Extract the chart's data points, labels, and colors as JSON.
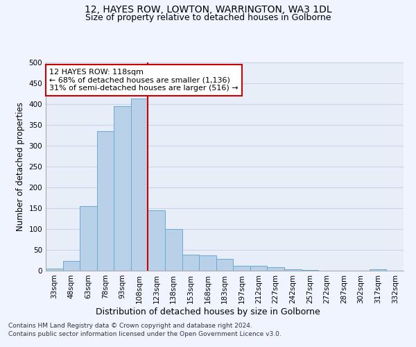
{
  "title": "12, HAYES ROW, LOWTON, WARRINGTON, WA3 1DL",
  "subtitle": "Size of property relative to detached houses in Golborne",
  "xlabel": "Distribution of detached houses by size in Golborne",
  "ylabel": "Number of detached properties",
  "categories": [
    "33sqm",
    "48sqm",
    "63sqm",
    "78sqm",
    "93sqm",
    "108sqm",
    "123sqm",
    "138sqm",
    "153sqm",
    "168sqm",
    "183sqm",
    "197sqm",
    "212sqm",
    "227sqm",
    "242sqm",
    "257sqm",
    "272sqm",
    "287sqm",
    "302sqm",
    "317sqm",
    "332sqm"
  ],
  "values": [
    5,
    23,
    155,
    335,
    395,
    413,
    145,
    100,
    38,
    36,
    28,
    11,
    11,
    8,
    4,
    2,
    0,
    0,
    0,
    4,
    0
  ],
  "bar_color": "#b8d0e8",
  "bar_edge_color": "#6aaad4",
  "highlight_bar_index": 5,
  "vline_color": "#cc0000",
  "annotation_text": "12 HAYES ROW: 118sqm\n← 68% of detached houses are smaller (1,136)\n31% of semi-detached houses are larger (516) →",
  "annotation_box_color": "#ffffff",
  "annotation_box_edge": "#cc0000",
  "ylim": [
    0,
    500
  ],
  "yticks": [
    0,
    50,
    100,
    150,
    200,
    250,
    300,
    350,
    400,
    450,
    500
  ],
  "bg_color": "#f0f4ff",
  "plot_bg_color": "#e8eef8",
  "grid_color": "#c8d4e8",
  "footnote1": "Contains HM Land Registry data © Crown copyright and database right 2024.",
  "footnote2": "Contains public sector information licensed under the Open Government Licence v3.0.",
  "title_fontsize": 10,
  "subtitle_fontsize": 9,
  "axis_label_fontsize": 8.5,
  "tick_fontsize": 7.5,
  "annotation_fontsize": 8,
  "footnote_fontsize": 6.5
}
